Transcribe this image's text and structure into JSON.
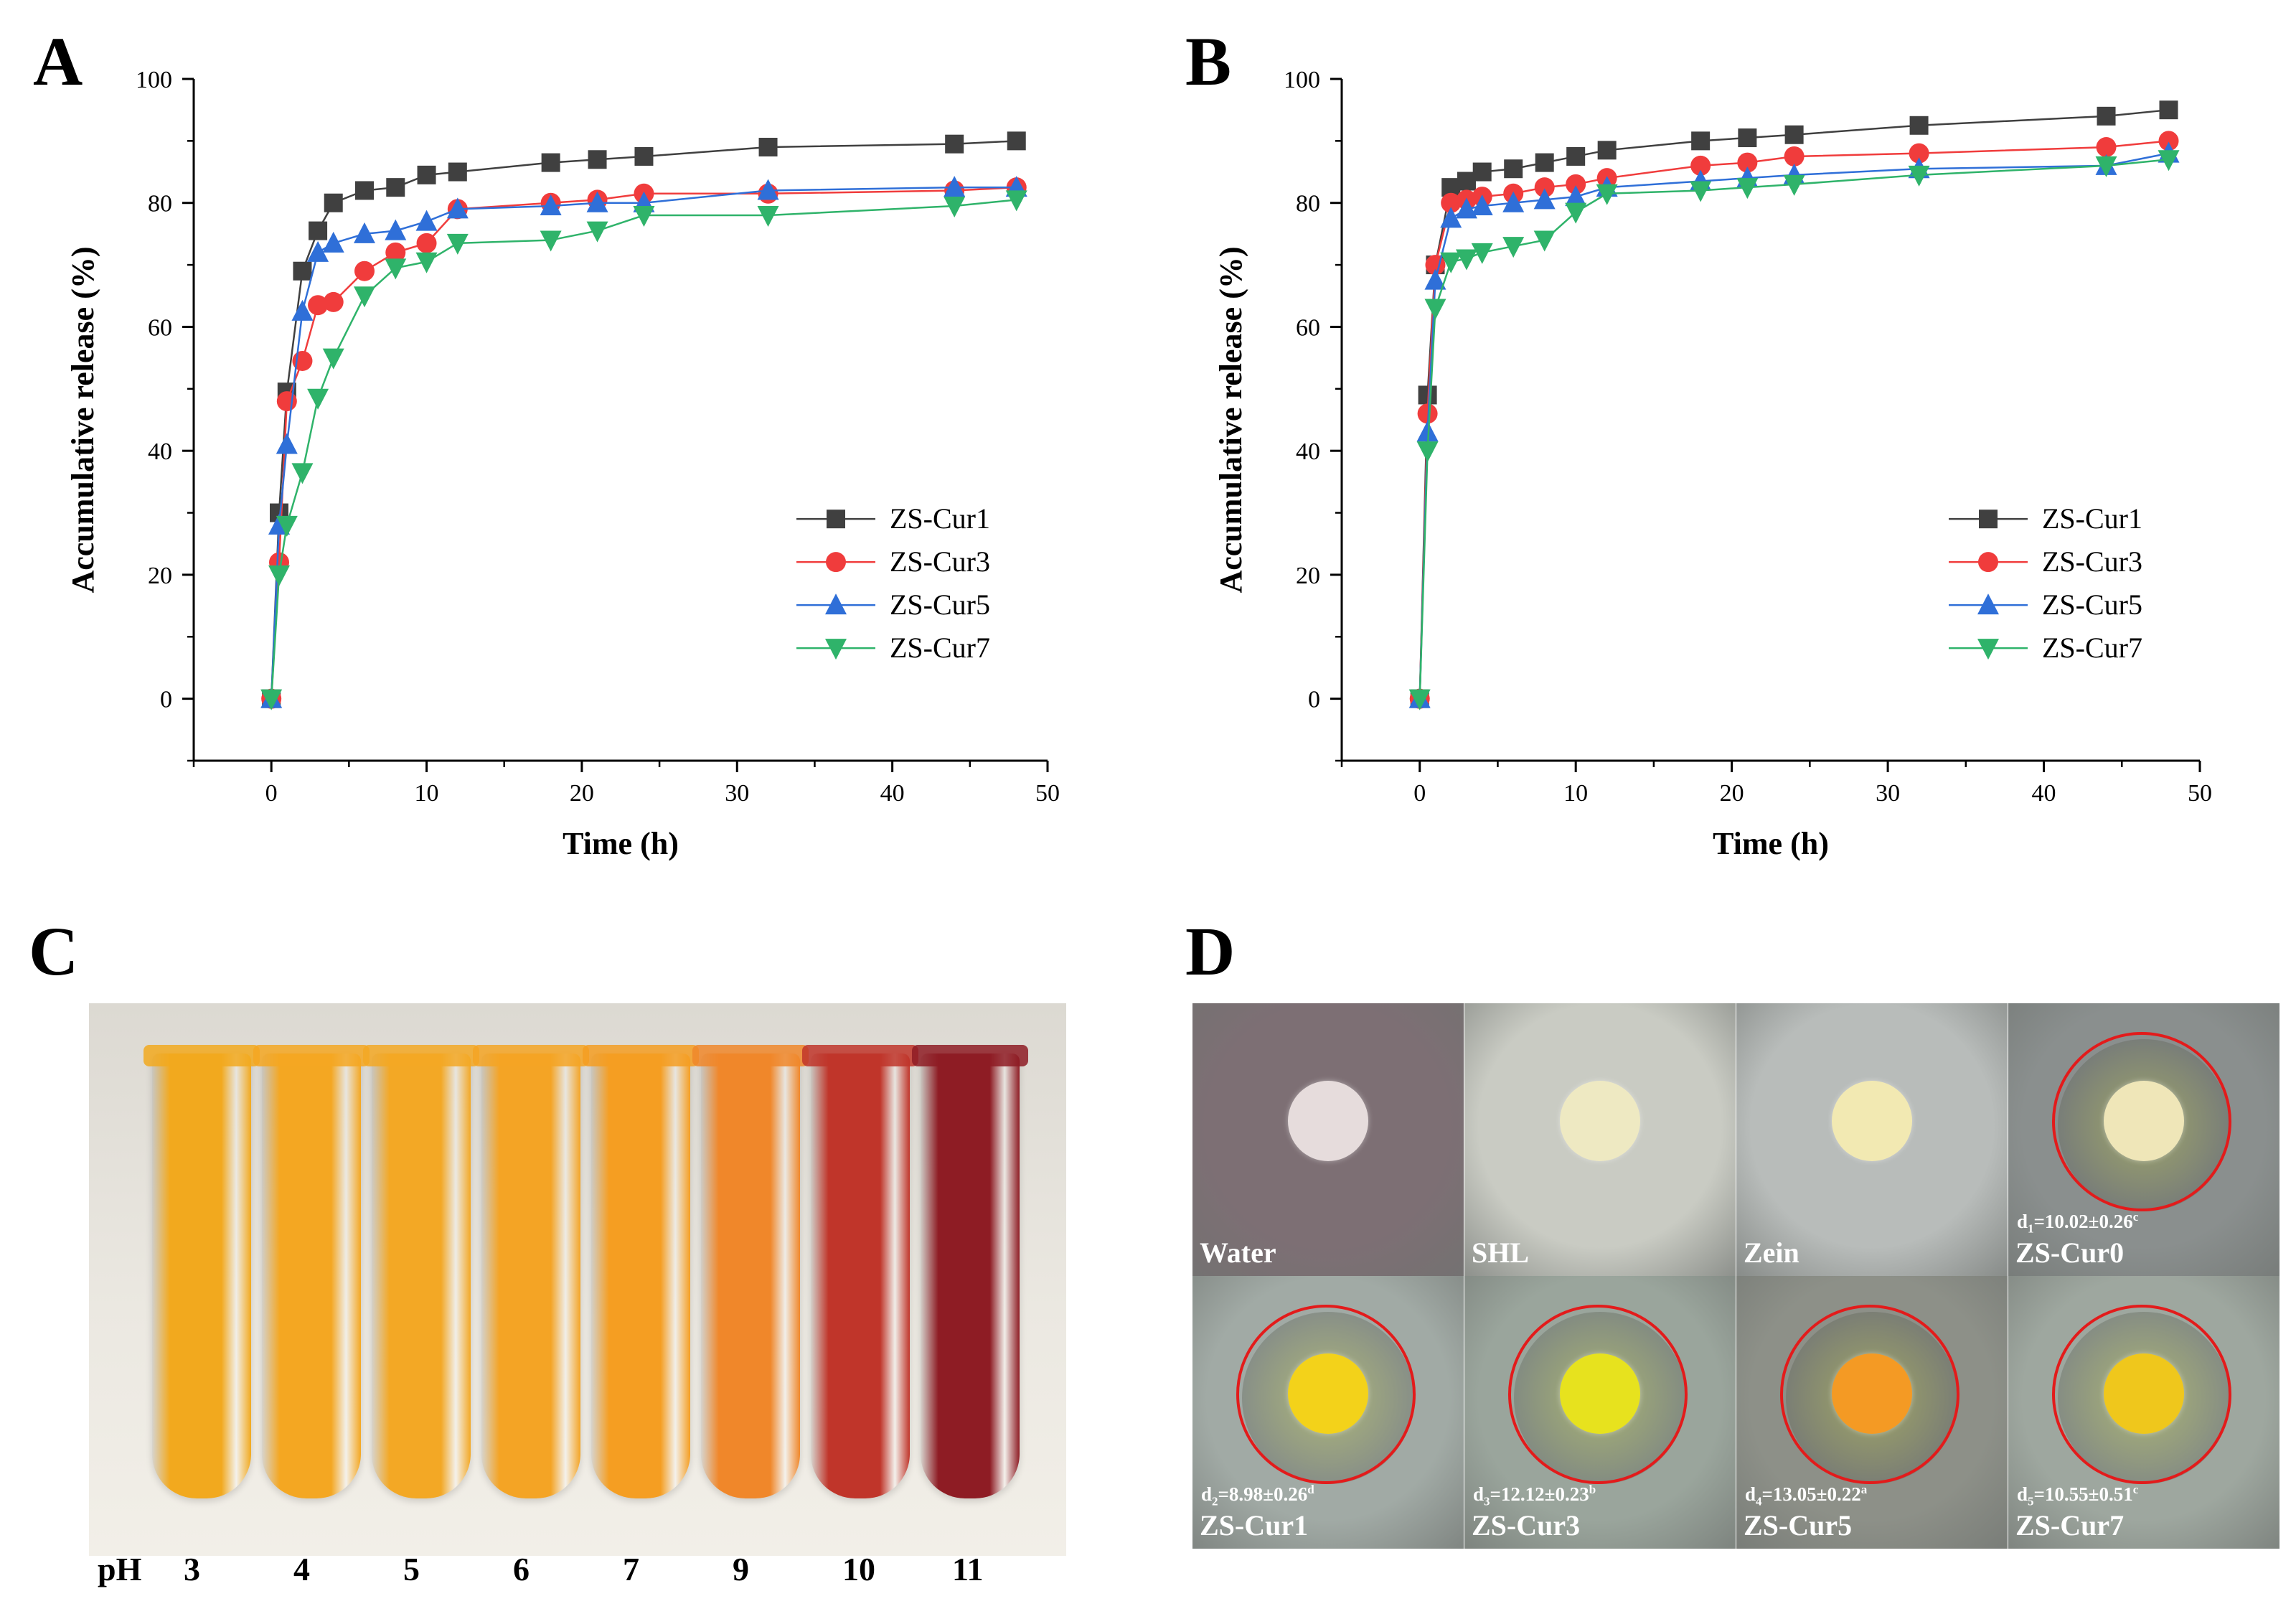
{
  "panels": {
    "A": "A",
    "B": "B",
    "C": "C",
    "D": "D"
  },
  "chart_data": [
    {
      "type": "line",
      "panel": "A",
      "xlabel": "Time (h)",
      "ylabel": "Accumulative release (%)",
      "xlim": [
        -5,
        50
      ],
      "ylim": [
        -10,
        100
      ],
      "xticks": [
        0,
        10,
        20,
        30,
        40,
        50
      ],
      "yticks": [
        0,
        20,
        40,
        60,
        80,
        100
      ],
      "legend_position": "bottom-right",
      "series": [
        {
          "name": "ZS-Cur1",
          "color": "#404040",
          "marker": "square",
          "x": [
            0,
            0.5,
            1,
            2,
            3,
            4,
            6,
            8,
            10,
            12,
            18,
            21,
            24,
            32,
            44,
            48
          ],
          "y": [
            0,
            30,
            49.5,
            69,
            75.5,
            80,
            82,
            82.5,
            84.5,
            85,
            86.5,
            87,
            87.5,
            89,
            89.5,
            90
          ]
        },
        {
          "name": "ZS-Cur3",
          "color": "#f03c3c",
          "marker": "circle",
          "x": [
            0,
            0.5,
            1,
            2,
            3,
            4,
            6,
            8,
            10,
            12,
            18,
            21,
            24,
            32,
            44,
            48
          ],
          "y": [
            0,
            22,
            48,
            54.5,
            63.5,
            64,
            69,
            72,
            73.5,
            79,
            80,
            80.5,
            81.5,
            81.5,
            82,
            82.5
          ]
        },
        {
          "name": "ZS-Cur5",
          "color": "#2f6fd8",
          "marker": "triangle-up",
          "x": [
            0,
            0.5,
            1,
            2,
            3,
            4,
            6,
            8,
            10,
            12,
            18,
            21,
            24,
            32,
            44,
            48
          ],
          "y": [
            0,
            28,
            41,
            62.5,
            72,
            73.5,
            75,
            75.5,
            77,
            79,
            79.5,
            80,
            80,
            82,
            82.5,
            82.5
          ]
        },
        {
          "name": "ZS-Cur7",
          "color": "#2fb36a",
          "marker": "triangle-down",
          "x": [
            0,
            0.5,
            1,
            2,
            3,
            4,
            6,
            8,
            10,
            12,
            18,
            21,
            24,
            32,
            44,
            48
          ],
          "y": [
            0,
            20,
            28,
            36.5,
            48.5,
            55,
            65,
            69.5,
            70.5,
            73.5,
            74,
            75.5,
            78,
            78,
            79.5,
            80.5
          ]
        }
      ]
    },
    {
      "type": "line",
      "panel": "B",
      "xlabel": "Time (h)",
      "ylabel": "Accumulative release (%)",
      "xlim": [
        -5,
        50
      ],
      "ylim": [
        -10,
        100
      ],
      "xticks": [
        0,
        10,
        20,
        30,
        40,
        50
      ],
      "yticks": [
        0,
        20,
        40,
        60,
        80,
        100
      ],
      "legend_position": "bottom-right",
      "series": [
        {
          "name": "ZS-Cur1",
          "color": "#404040",
          "marker": "square",
          "x": [
            0,
            0.5,
            1,
            2,
            3,
            4,
            6,
            8,
            10,
            12,
            18,
            21,
            24,
            32,
            44,
            48
          ],
          "y": [
            0,
            49,
            70,
            82.5,
            83.5,
            85,
            85.5,
            86.5,
            87.5,
            88.5,
            90,
            90.5,
            91,
            92.5,
            94,
            95
          ]
        },
        {
          "name": "ZS-Cur3",
          "color": "#f03c3c",
          "marker": "circle",
          "x": [
            0,
            0.5,
            1,
            2,
            3,
            4,
            6,
            8,
            10,
            12,
            18,
            21,
            24,
            32,
            44,
            48
          ],
          "y": [
            0,
            46,
            70,
            80,
            80.5,
            81,
            81.5,
            82.5,
            83,
            84,
            86,
            86.5,
            87.5,
            88,
            89,
            90
          ]
        },
        {
          "name": "ZS-Cur5",
          "color": "#2f6fd8",
          "marker": "triangle-up",
          "x": [
            0,
            0.5,
            1,
            2,
            3,
            4,
            6,
            8,
            10,
            12,
            18,
            21,
            24,
            32,
            44,
            48
          ],
          "y": [
            0,
            43,
            67.5,
            77.5,
            79,
            79.5,
            80,
            80.5,
            81,
            82.5,
            83.5,
            84,
            84.5,
            85.5,
            86,
            88
          ]
        },
        {
          "name": "ZS-Cur7",
          "color": "#2fb36a",
          "marker": "triangle-down",
          "x": [
            0,
            0.5,
            1,
            2,
            3,
            4,
            6,
            8,
            10,
            12,
            18,
            21,
            24,
            32,
            44,
            48
          ],
          "y": [
            0,
            40,
            63,
            70.5,
            71,
            72,
            73,
            74,
            78.5,
            81.5,
            82,
            82.5,
            83,
            84.5,
            86,
            87
          ]
        }
      ]
    }
  ],
  "panel_c": {
    "ph_label": "pH",
    "tubes": [
      {
        "ph": "3",
        "color": "#f2a91e"
      },
      {
        "ph": "4",
        "color": "#f4a722"
      },
      {
        "ph": "5",
        "color": "#f3a825"
      },
      {
        "ph": "6",
        "color": "#f4a425"
      },
      {
        "ph": "7",
        "color": "#f59e22"
      },
      {
        "ph": "9",
        "color": "#f0872a"
      },
      {
        "ph": "10",
        "color": "#c0352a"
      },
      {
        "ph": "11",
        "color": "#8e1c24"
      }
    ]
  },
  "panel_d": {
    "cells": [
      {
        "label": "Water",
        "d": "",
        "bg": "#7d6f74",
        "disc": "#e6dcdc",
        "ring": false
      },
      {
        "label": "SHL",
        "d": "",
        "bg": "#c9cbc3",
        "disc": "#eee9c2",
        "ring": false
      },
      {
        "label": "Zein",
        "d": "",
        "bg": "#b8bcba",
        "disc": "#f2e9b2",
        "ring": false
      },
      {
        "label": "ZS-Cur0",
        "d_pre": "d",
        "d_sub": "1",
        "d_val": "=10.02±0.26",
        "d_sup": "c",
        "bg": "#8a8f8e",
        "disc": "#efe6b8",
        "ring": true
      },
      {
        "label": "ZS-Cur1",
        "d_pre": "d",
        "d_sub": "2",
        "d_val": "=8.98±0.26",
        "d_sup": "d",
        "bg": "#a1aaa5",
        "disc": "#f3d21a",
        "ring": true
      },
      {
        "label": "ZS-Cur3",
        "d_pre": "d",
        "d_sub": "3",
        "d_val": "=12.12±0.23",
        "d_sup": "b",
        "bg": "#9aa59c",
        "disc": "#e7e21e",
        "ring": true
      },
      {
        "label": "ZS-Cur5",
        "d_pre": "d",
        "d_sub": "4",
        "d_val": "=13.05±0.22",
        "d_sup": "a",
        "bg": "#8d9088",
        "disc": "#f49a24",
        "ring": true
      },
      {
        "label": "ZS-Cur7",
        "d_pre": "d",
        "d_sub": "5",
        "d_val": "=10.55±0.51",
        "d_sup": "c",
        "bg": "#9ea79f",
        "disc": "#efc71c",
        "ring": true
      }
    ]
  }
}
